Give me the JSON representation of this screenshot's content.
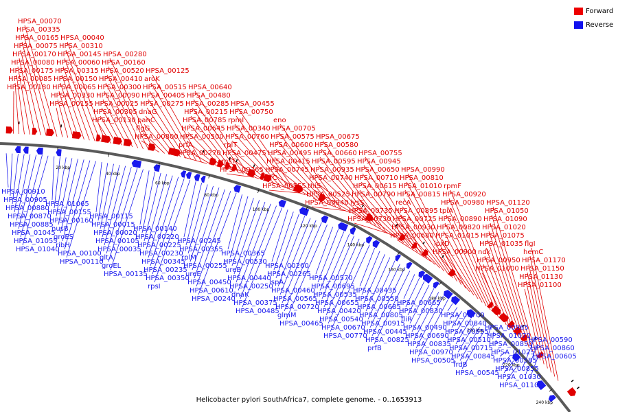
{
  "caption": "Helicobacter pylori SouthAfrica7, complete genome. - 0..1653913",
  "legend": [
    {
      "label": "Forward",
      "color": "#ee0000"
    },
    {
      "label": "Reverse",
      "color": "#1111ee"
    }
  ],
  "colors": {
    "forward": "#e00000",
    "reverse": "#1a1aee",
    "backbone": "#555555"
  },
  "scale": {
    "unit": "kbp",
    "ticks": [
      20,
      40,
      60,
      80,
      100,
      120,
      140,
      160,
      180,
      200,
      220,
      240
    ]
  },
  "forward_labels": [
    "HPSA_00180",
    "HPSA_00085",
    "HPSA_00175",
    "HPSA_00080",
    "HPSA_00170",
    "HPSA_00075",
    "HPSA_00165",
    "HPSA_00335",
    "HPSA_00070",
    "HPSA_00155",
    "HPSA_00330",
    "HPSA_00065",
    "HPSA_00150",
    "HPSA_00315",
    "HPSA_00060",
    "HPSA_00145",
    "HPSA_00310",
    "HPSA_00040",
    "HPSA_00130",
    "HPSA_00305",
    "HPSA_00025",
    "HPSA_00090",
    "HPSA_00300",
    "HPSA_00410",
    "HPSA_00520",
    "HPSA_00160",
    "HPSA_00280",
    "HPSA_00800",
    "flgG",
    "panC",
    "dnaG",
    "HPSA_00275",
    "HPSA_00405",
    "HPSA_00515",
    "aroK",
    "HPSA_00125",
    "HPSA_00270",
    "prfA",
    "HPSA_00500",
    "HPSA_00645",
    "HPSA_00785",
    "HPSA_00215",
    "HPSA_00285",
    "HPSA_00480",
    "HPSA_00640",
    "HPSA_00765",
    "rpsT",
    "HPSA_00475",
    "rplT",
    "HPSA_00760",
    "HPSA_00340",
    "rpmI",
    "HPSA_00750",
    "HPSA_00455",
    "HPSA_00555",
    "infC",
    "HPSA_00745",
    "HPSA_00415",
    "HPSA_00495",
    "HPSA_00600",
    "HPSA_00575",
    "HPSA_00705",
    "eno",
    "HPSA_00940",
    "HPSA_00525",
    "thiS",
    "HPSA_00740",
    "HPSA_00935",
    "HPSA_00595",
    "HPSA_00660",
    "HPSA_00580",
    "HPSA_00675",
    "HPSA_00730",
    "HPSA_00735",
    "lysS",
    "HPSA_00790",
    "HPSA_00615",
    "HPSA_00710",
    "HPSA_00650",
    "HPSA_00945",
    "HPSA_00755",
    "HPSA_00680",
    "HPSA_00930",
    "HPSA_00725",
    "HPSA_00895",
    "recA",
    "HPSA_00815",
    "HPSA_01010",
    "HPSA_00810",
    "HPSA_00990",
    "HPSA_00900",
    "lpxD",
    "HPSA_01015",
    "HPSA_00820",
    "HPSA_00890",
    "tpiA",
    "HPSA_00980",
    "HPSA_00920",
    "rpmF",
    "HPSA_01000",
    "HPSA_00950",
    "ndk",
    "HPSA_01035",
    "HPSA_01075",
    "HPSA_01020",
    "HPSA_01090",
    "HPSA_01050",
    "HPSA_01120",
    "HPSA_01100",
    "HPSA_01130",
    "HPSA_01150",
    "HPSA_01170",
    "hemC",
    "flgI"
  ],
  "reverse_labels": [
    "HPSA_00910",
    "HPSA_00905",
    "HPSA_00880",
    "HPSA_00870",
    "HPSA_00885",
    "HPSA_01045",
    "HPSA_01055",
    "HPSA_01040",
    "HPSA_01065",
    "HPSA_00155",
    "HPSA_00160",
    "nusB",
    "groES",
    "ribH",
    "HPSA_00100",
    "HPSA_00110",
    "HPSA_00115",
    "HPSA_00015",
    "HPSA_00020",
    "HPSA_00105",
    "HPSA_00035",
    "gltA",
    "groEL",
    "HPSA_00135",
    "HPSA_00140",
    "HPSA_00220",
    "HPSA_00225",
    "HPSA_00230",
    "HPSA_00345",
    "HPSA_00235",
    "HPSA_00350",
    "rpsI",
    "HPSA_00245",
    "HPSA_00355",
    "rplM",
    "HPSA_00255",
    "ureE",
    "HPSA_00450",
    "HPSA_00610",
    "HPSA_00240",
    "HPSA_00365",
    "HPSA_00530",
    "ureB",
    "HPSA_00440",
    "HPSA_00250",
    "dnaK",
    "HPSA_00375",
    "HPSA_00485",
    "HPSA_00260",
    "HPSA_00265",
    "lspA",
    "HPSA_00460",
    "HPSA_00565",
    "HPSA_00720",
    "glmM",
    "HPSA_00465",
    "HPSA_00570",
    "HPSA_00695",
    "HPSA_00535",
    "HPSA_00655",
    "HPSA_00420",
    "HPSA_00540",
    "HPSA_00670",
    "HPSA_00770",
    "HPSA_00435",
    "HPSA_00550",
    "HPSA_00685",
    "HPSA_00805",
    "HPSA_00915",
    "HPSA_00445",
    "HPSA_00825",
    "prfB",
    "HPSA_00665",
    "HPSA_00830",
    "fliR",
    "HPSA_00490",
    "HPSA_00690",
    "HPSA_00835",
    "HPSA_00970",
    "HPSA_00505",
    "HPSA_00700",
    "HPSA_00840",
    "HPSA_00955",
    "HPSA_00510",
    "HPSA_00715",
    "HPSA_00845",
    "frdB",
    "HPSA_00545",
    "HPSA_00965",
    "HPSA_01070",
    "HPSA_00850",
    "HPSA_01025",
    "HPSA_00585",
    "HPSA_00855",
    "HPSA_01030",
    "HPSA_01105",
    "HPSA_00590",
    "HPSA_00860",
    "HPSA_00605"
  ]
}
